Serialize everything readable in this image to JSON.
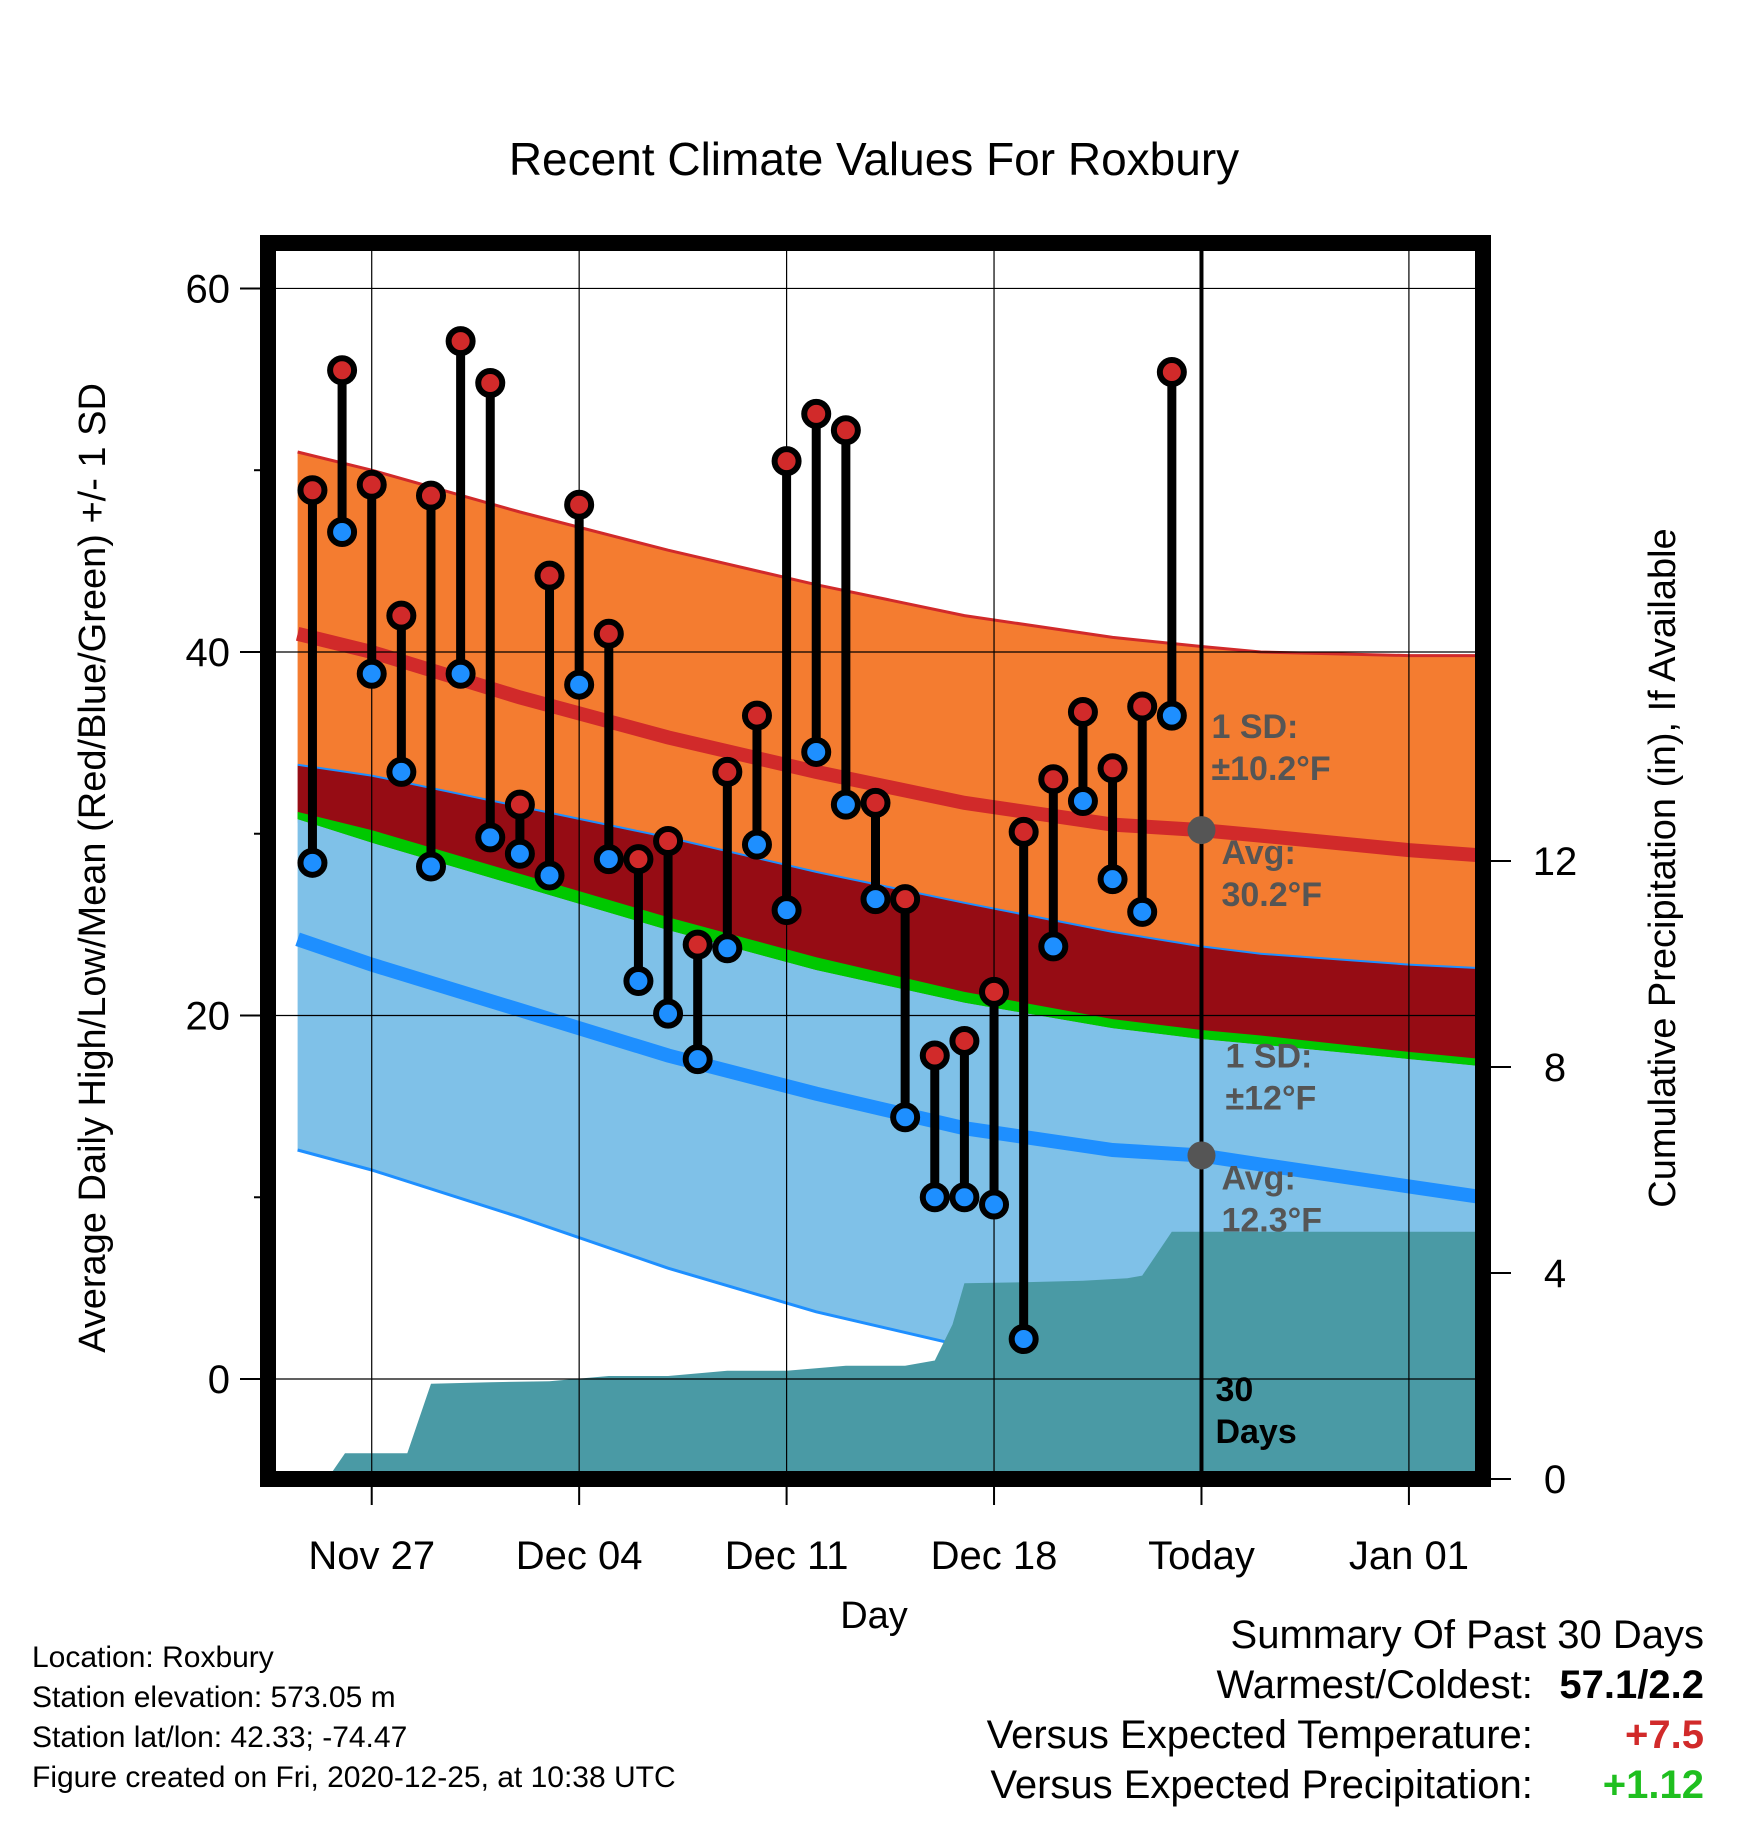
{
  "chart_data": {
    "type": "climate-range",
    "title": "Recent Climate Values For Roxbury",
    "xlabel": "Day",
    "ylabel_left": "Average Daily High/Low/Mean (Red/Blue/Green) +/- 1 SD",
    "ylabel_right": "Cumulative Precipitation (in), If Available",
    "ylim_left": [
      -5.5,
      62.5
    ],
    "ylim_right": [
      0,
      24
    ],
    "yticks_left": [
      0,
      20,
      40,
      60
    ],
    "yticks_right": [
      0,
      4,
      8,
      12
    ],
    "xlim": [
      -3.5,
      37.5
    ],
    "xticks": [
      {
        "x": 0,
        "label": "Nov 27"
      },
      {
        "x": 7,
        "label": "Dec 04"
      },
      {
        "x": 14,
        "label": "Dec 11"
      },
      {
        "x": 21,
        "label": "Dec 18"
      },
      {
        "x": 28,
        "label": "Today"
      },
      {
        "x": 35,
        "label": "Jan 01"
      }
    ],
    "today_x": 28,
    "normals": {
      "x": [
        -2.5,
        0,
        5,
        10,
        15,
        20,
        25,
        28,
        30,
        35,
        37.5
      ],
      "high_upper": [
        51.0,
        50.0,
        47.7,
        45.6,
        43.7,
        42.0,
        40.8,
        40.3,
        40.0,
        39.8,
        39.8
      ],
      "high_avg": [
        41.0,
        40.0,
        37.5,
        35.3,
        33.4,
        31.7,
        30.5,
        30.2,
        29.9,
        29.1,
        28.8
      ],
      "high_lower": [
        33.8,
        33.2,
        31.5,
        29.8,
        27.9,
        26.2,
        24.6,
        23.8,
        23.4,
        22.8,
        22.6
      ],
      "mean_avg": [
        31.2,
        30.2,
        27.8,
        25.4,
        23.2,
        21.3,
        19.8,
        19.2,
        18.9,
        18.0,
        17.6
      ],
      "low_upper": [
        30.8,
        29.5,
        27.1,
        24.7,
        22.5,
        20.7,
        19.3,
        18.7,
        18.4,
        17.6,
        17.2
      ],
      "low_avg": [
        24.2,
        22.8,
        20.3,
        17.8,
        15.7,
        13.8,
        12.6,
        12.3,
        11.8,
        10.6,
        10.0
      ],
      "low_lower": [
        12.6,
        11.5,
        8.9,
        6.1,
        3.7,
        1.8,
        0.6,
        0.2,
        -0.3,
        -1.4,
        -2.0
      ]
    },
    "high_sd_label": [
      "1 SD:",
      "±10.2°F"
    ],
    "high_avg_label": [
      "Avg:",
      "30.2°F"
    ],
    "low_sd_label": [
      "1 SD:",
      "±12°F"
    ],
    "low_avg_label": [
      "Avg:",
      "12.3°F"
    ],
    "days_label": [
      "30",
      "Days"
    ],
    "days": {
      "x": [
        -2,
        -1,
        0,
        1,
        2,
        3,
        4,
        5,
        6,
        7,
        8,
        9,
        10,
        11,
        12,
        13,
        14,
        15,
        16,
        17,
        18,
        19,
        20,
        21,
        22,
        23,
        24,
        25,
        26,
        27
      ],
      "high": [
        48.9,
        55.5,
        49.2,
        42.0,
        48.6,
        57.1,
        54.8,
        31.6,
        44.2,
        48.1,
        41.0,
        28.6,
        29.6,
        23.9,
        33.4,
        36.5,
        50.5,
        53.1,
        52.2,
        31.7,
        26.4,
        17.8,
        18.6,
        21.3,
        30.1,
        33.0,
        36.7,
        33.6,
        37.0,
        55.4
      ],
      "low": [
        28.4,
        46.6,
        38.8,
        33.4,
        28.2,
        38.8,
        29.8,
        28.9,
        27.7,
        38.2,
        28.6,
        21.9,
        20.1,
        17.6,
        23.7,
        29.4,
        25.8,
        34.5,
        31.6,
        26.4,
        14.4,
        10.0,
        10.0,
        9.6,
        2.2,
        23.8,
        31.8,
        27.5,
        25.7,
        36.5
      ]
    },
    "precip": {
      "x": [
        -2.5,
        -1.5,
        -0.9,
        1.2,
        2.0,
        4.0,
        6.0,
        8.0,
        10.0,
        12.0,
        14.0,
        16.0,
        18.0,
        19.0,
        19.6,
        20.0,
        22.0,
        24.0,
        25.5,
        26.0,
        27.0,
        28.0,
        30.0,
        37.5
      ],
      "total": [
        0.0,
        0.0,
        0.5,
        0.5,
        1.85,
        1.88,
        1.9,
        2.0,
        2.0,
        2.1,
        2.1,
        2.2,
        2.2,
        2.3,
        3.0,
        3.8,
        3.82,
        3.85,
        3.9,
        3.95,
        4.8,
        4.8,
        4.8,
        4.8
      ]
    },
    "colors": {
      "high_band": "#f47c30",
      "high_line": "#d12a2a",
      "mean_band": "#960c14",
      "mean_line": "#00c800",
      "low_band": "#7fc1e8",
      "low_line": "#1e8fff",
      "precip": "#4a9aa5",
      "high_dot": "#d12a2a",
      "low_dot": "#1e8fff",
      "annotation": "#555555"
    }
  },
  "info": {
    "location": "Location: Roxbury",
    "elevation": "Station elevation: 573.05 m",
    "latlon": "Station lat/lon: 42.33; -74.47",
    "created": "Figure created on Fri, 2020-12-25, at 10:38 UTC"
  },
  "summary": {
    "title": "Summary Of Past 30 Days",
    "warmest_label": "Warmest/Coldest:",
    "warmest_value": "57.1/2.2",
    "temp_label": "Versus Expected Temperature:",
    "temp_value": "+7.5",
    "temp_color": "#d12a2a",
    "precip_label": "Versus Expected Precipitation:",
    "precip_value": "+1.12",
    "precip_color": "#1fbf1f"
  }
}
